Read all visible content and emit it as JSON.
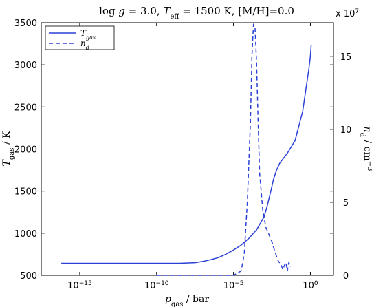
{
  "chart_data": {
    "type": "line",
    "title": "log g = 3.0, T_eff = 1500 K, [M/H]=0.0",
    "title_parts": {
      "a": "log ",
      "g": "g",
      "b": " = 3.0, ",
      "T": "T",
      "eff": "eff",
      "c": " = 1500 K, [M/H]=0.0"
    },
    "xlabel": {
      "base": "p",
      "sub": "gas",
      "unit": " / bar"
    },
    "ylabel_left": {
      "base": "T",
      "sub": "gas",
      "unit": " / K"
    },
    "ylabel_right": {
      "base": "n",
      "sub": "d",
      "unit": " / cm",
      "sup": "−3"
    },
    "x_scale": "log",
    "xlim_log10": [
      -17.5,
      1.5
    ],
    "x_ticks": [
      {
        "exp": -15,
        "base": "10",
        "pow": "−15"
      },
      {
        "exp": -10,
        "base": "10",
        "pow": "−10"
      },
      {
        "exp": -5,
        "base": "10",
        "pow": "−5"
      },
      {
        "exp": 0,
        "base": "10",
        "pow": "0"
      }
    ],
    "ylim_left": [
      500,
      3500
    ],
    "y_ticks_left": [
      "500",
      "1000",
      "1500",
      "2000",
      "2500",
      "3000",
      "3500"
    ],
    "ylim_right": [
      0,
      17.3
    ],
    "y_ticks_right": [
      "0",
      "5",
      "10",
      "15"
    ],
    "right_multiplier": "x 10",
    "right_multiplier_exp": "7",
    "grid": false,
    "legend_position": "top-left",
    "series": [
      {
        "name_base": "T",
        "name_sub": "gas",
        "axis": "left",
        "style": "solid",
        "color": "#2b41d6",
        "log10_x": [
          -16.2,
          -14,
          -12,
          -10,
          -8.5,
          -7.5,
          -7,
          -6.5,
          -6,
          -5.5,
          -5,
          -4.5,
          -4,
          -3.5,
          -3,
          -2.8,
          -2.6,
          -2.4,
          -2.2,
          -2,
          -1.8,
          -1.5,
          -1,
          -0.5,
          -0.3,
          -0.1,
          0,
          0.05
        ],
        "values": [
          643,
          643,
          643,
          643,
          643,
          650,
          665,
          685,
          710,
          750,
          800,
          860,
          940,
          1040,
          1200,
          1330,
          1480,
          1640,
          1750,
          1830,
          1880,
          1950,
          2100,
          2450,
          2700,
          2950,
          3100,
          3230
        ]
      },
      {
        "name_base": "n",
        "name_sub": "d",
        "axis": "right",
        "style": "dashed",
        "color": "#2b41d6",
        "log10_x": [
          -10,
          -7,
          -5,
          -4.5,
          -4.3,
          -4.1,
          -3.9,
          -3.8,
          -3.7,
          -3.6,
          -3.5,
          -3.4,
          -3.3,
          -3.1,
          -2.9,
          -2.7,
          -2.5,
          -2.3,
          -2.1,
          -1.9,
          -1.8,
          -1.6,
          -1.5,
          -1.4,
          -1.3
        ],
        "values": [
          0,
          0,
          0,
          0.3,
          1.5,
          5,
          10.5,
          15,
          17.2,
          17.0,
          14.5,
          10.5,
          7.0,
          4.5,
          3.3,
          2.8,
          2.3,
          1.6,
          1.0,
          0.7,
          0.4,
          0.9,
          0.3,
          0.9,
          0.6
        ]
      }
    ]
  }
}
